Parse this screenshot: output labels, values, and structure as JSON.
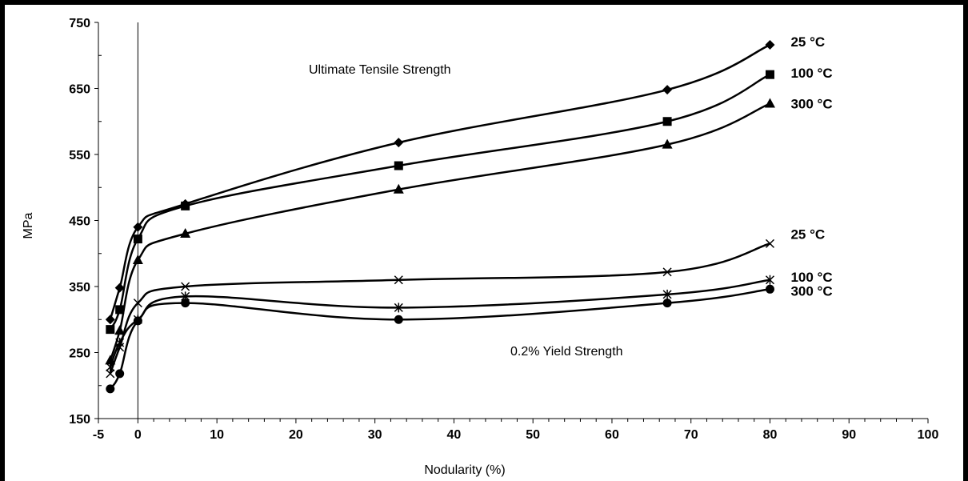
{
  "chart_data": {
    "type": "line",
    "title": "",
    "xlabel": "Nodularity (%)",
    "ylabel": "MPa",
    "xlim": [
      -5,
      100
    ],
    "ylim": [
      150,
      750
    ],
    "xticks": [
      -5,
      0,
      10,
      20,
      30,
      40,
      50,
      60,
      70,
      80,
      90,
      100
    ],
    "yticks": [
      150,
      250,
      350,
      450,
      550,
      650,
      750
    ],
    "vertical_line_x": 0,
    "grid": false,
    "annotations": [
      {
        "text": "Ultimate Tensile Strength",
        "x": 30,
        "y": 648
      },
      {
        "text": "0.2% Yield Strength",
        "x": 60,
        "y": 258
      }
    ],
    "series": [
      {
        "name": "25 °C",
        "group": "Ultimate Tensile Strength",
        "marker": "diamond",
        "x": [
          -3.5,
          -2.3,
          0,
          6,
          33,
          67,
          80
        ],
        "y": [
          300,
          348,
          440,
          475,
          568,
          648,
          716
        ]
      },
      {
        "name": "100 °C",
        "group": "Ultimate Tensile Strength",
        "marker": "square",
        "x": [
          -3.5,
          -2.3,
          0,
          6,
          33,
          67,
          80
        ],
        "y": [
          285,
          315,
          422,
          472,
          533,
          600,
          671
        ]
      },
      {
        "name": "300 °C",
        "group": "Ultimate Tensile Strength",
        "marker": "triangle",
        "x": [
          -3.5,
          -2.3,
          0,
          6,
          33,
          67,
          80
        ],
        "y": [
          238,
          283,
          390,
          430,
          497,
          565,
          627
        ]
      },
      {
        "name": "25 °C",
        "group": "0.2% Yield Strength",
        "marker": "x",
        "x": [
          -3.5,
          -2.3,
          0,
          6,
          33,
          67,
          80
        ],
        "y": [
          218,
          258,
          325,
          350,
          360,
          372,
          415
        ]
      },
      {
        "name": "100 °C",
        "group": "0.2% Yield Strength",
        "marker": "star",
        "x": [
          -3.5,
          -2.3,
          0,
          6,
          33,
          67,
          80
        ],
        "y": [
          228,
          265,
          300,
          335,
          318,
          338,
          360
        ]
      },
      {
        "name": "300 °C",
        "group": "0.2% Yield Strength",
        "marker": "circle",
        "x": [
          -3.5,
          -2.3,
          0,
          6,
          33,
          67,
          80
        ],
        "y": [
          195,
          218,
          298,
          325,
          300,
          325,
          346
        ]
      }
    ]
  }
}
